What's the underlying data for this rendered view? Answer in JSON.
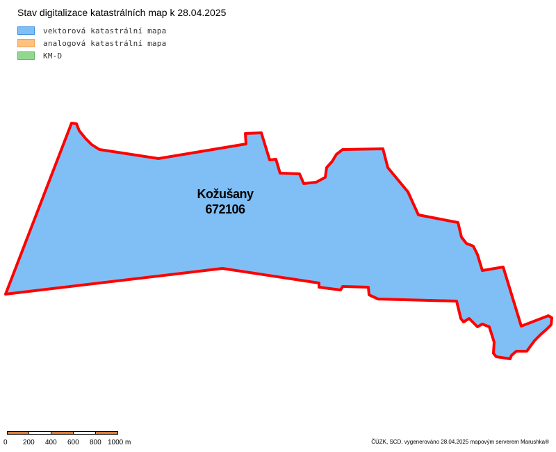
{
  "title": "Stav digitalizace katastrálních map k 28.04.2025",
  "legend": [
    {
      "label": "vektorová katastrální mapa",
      "fill": "#7fbff5",
      "stroke": "#3a8ee0"
    },
    {
      "label": "analogová katastrální mapa",
      "fill": "#ffc080",
      "stroke": "#f0a050"
    },
    {
      "label": "KM-D",
      "fill": "#90d890",
      "stroke": "#60b860"
    }
  ],
  "area": {
    "name": "Kožušany",
    "code": "672106",
    "fill": "#7fbff5",
    "outline": "#ff0000",
    "map_status": "vektorová katastrální mapa"
  },
  "scalebar": {
    "labels": [
      "0",
      "200",
      "400",
      "600",
      "800",
      "1000 m"
    ],
    "colors": [
      "#d97c3c",
      "#ffffff"
    ]
  },
  "footer": "ČÚZK, SCD, vygenerováno 28.04.2025 mapovým serverem Marushka®"
}
